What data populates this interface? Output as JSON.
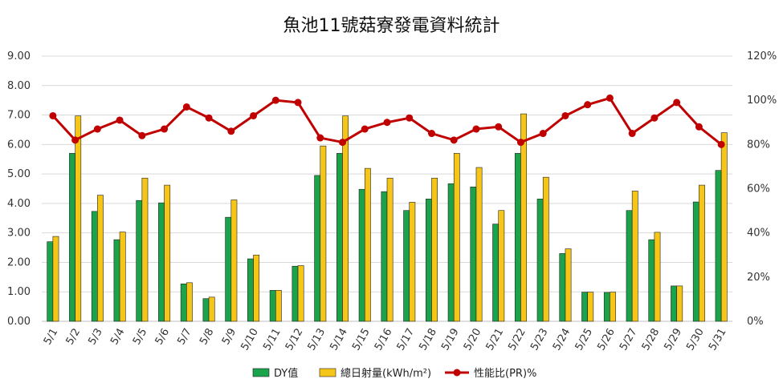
{
  "chart_data": {
    "type": "bar",
    "title": "魚池11號菇寮發電資料統計",
    "categories": [
      "5/1",
      "5/2",
      "5/3",
      "5/4",
      "5/5",
      "5/6",
      "5/7",
      "5/8",
      "5/9",
      "5/10",
      "5/11",
      "5/12",
      "5/13",
      "5/14",
      "5/15",
      "5/16",
      "5/17",
      "5/18",
      "5/19",
      "5/20",
      "5/21",
      "5/22",
      "5/23",
      "5/24",
      "5/25",
      "5/26",
      "5/27",
      "5/28",
      "5/29",
      "5/30",
      "5/31"
    ],
    "series": [
      {
        "name": "DY值",
        "type": "bar",
        "axis": "left",
        "color": "#1aa34a",
        "values": [
          2.7,
          5.7,
          3.73,
          2.77,
          4.1,
          4.02,
          1.27,
          0.77,
          3.53,
          2.12,
          1.05,
          1.87,
          4.95,
          5.7,
          4.48,
          4.4,
          3.76,
          4.15,
          4.67,
          4.56,
          3.3,
          5.7,
          4.15,
          2.3,
          0.99,
          0.98,
          3.76,
          2.77,
          1.2,
          4.05,
          5.12
        ]
      },
      {
        "name": "總日射量(kWh/m²)",
        "type": "bar",
        "axis": "left",
        "color": "#f5c518",
        "values": [
          2.88,
          6.97,
          4.28,
          3.03,
          4.86,
          4.62,
          1.31,
          0.82,
          4.12,
          2.25,
          1.05,
          1.89,
          5.95,
          6.97,
          5.19,
          4.86,
          4.04,
          4.86,
          5.7,
          5.22,
          3.76,
          7.04,
          4.89,
          2.46,
          0.99,
          0.99,
          4.42,
          3.02,
          1.2,
          4.62,
          6.4
        ]
      },
      {
        "name": "性能比(PR)%",
        "type": "line",
        "axis": "right",
        "color": "#c00000",
        "values": [
          93,
          82,
          87,
          91,
          84,
          87,
          97,
          92,
          86,
          93,
          100,
          99,
          83,
          81,
          87,
          90,
          92,
          85,
          82,
          87,
          88,
          81,
          85,
          93,
          98,
          101,
          85,
          92,
          99,
          88,
          80
        ]
      }
    ],
    "y_left": {
      "min": 0,
      "max": 9,
      "ticks": [
        "0.00",
        "1.00",
        "2.00",
        "3.00",
        "4.00",
        "5.00",
        "6.00",
        "7.00",
        "8.00",
        "9.00"
      ]
    },
    "y_right": {
      "min": 0,
      "max": 120,
      "ticks": [
        "0%",
        "20%",
        "40%",
        "60%",
        "80%",
        "100%",
        "120%"
      ]
    },
    "grid": true,
    "legend_position": "bottom"
  }
}
